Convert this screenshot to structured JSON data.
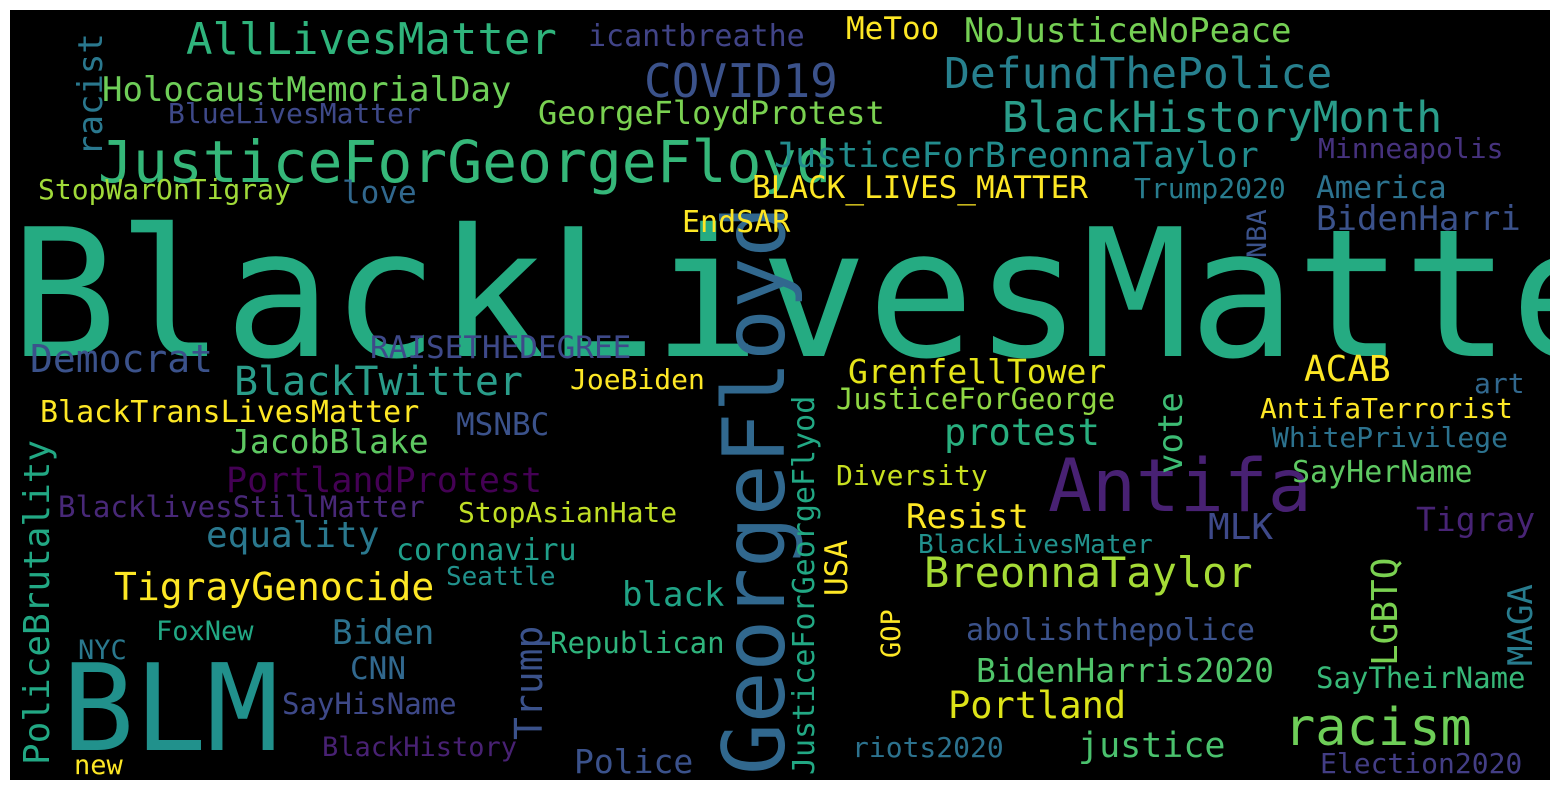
{
  "word_cloud": {
    "background": "#000000",
    "words": [
      {
        "text": "BlackLivesMatter",
        "color": "#25ab82",
        "orientation": "horizontal"
      },
      {
        "text": "BLM",
        "color": "#21918c",
        "orientation": "horizontal"
      },
      {
        "text": "GeorgeFloyd",
        "color": "#31688e",
        "orientation": "vertical"
      },
      {
        "text": "Antifa",
        "color": "#482173",
        "orientation": "horizontal"
      },
      {
        "text": "JusticeForGeorgeFloyd",
        "color": "#35b779",
        "orientation": "horizontal"
      },
      {
        "text": "AllLivesMatter",
        "color": "#2fb47c",
        "orientation": "horizontal"
      },
      {
        "text": "COVID19",
        "color": "#3b528b",
        "orientation": "horizontal"
      },
      {
        "text": "DefundThePolice",
        "color": "#27808e",
        "orientation": "horizontal"
      },
      {
        "text": "BlackHistoryMonth",
        "color": "#2a9d8a",
        "orientation": "horizontal"
      },
      {
        "text": "racism",
        "color": "#6ece58",
        "orientation": "horizontal"
      },
      {
        "text": "BreonnaTaylor",
        "color": "#a5db36",
        "orientation": "horizontal"
      },
      {
        "text": "TigrayGenocide",
        "color": "#fde725",
        "orientation": "horizontal"
      },
      {
        "text": "BlackTwitter",
        "color": "#2a9d8a",
        "orientation": "horizontal"
      },
      {
        "text": "Democrat",
        "color": "#3b528b",
        "orientation": "horizontal"
      },
      {
        "text": "PoliceBrutality",
        "color": "#22a884",
        "orientation": "vertical"
      },
      {
        "text": "NoJusticeNoPeace",
        "color": "#75d054",
        "orientation": "horizontal"
      },
      {
        "text": "icantbreathe",
        "color": "#414487",
        "orientation": "horizontal"
      },
      {
        "text": "MeToo",
        "color": "#fde725",
        "orientation": "horizontal"
      },
      {
        "text": "HolocaustMemorialDay",
        "color": "#6ece58",
        "orientation": "horizontal"
      },
      {
        "text": "BlueLivesMatter",
        "color": "#3e4989",
        "orientation": "horizontal"
      },
      {
        "text": "GeorgeFloydProtest",
        "color": "#7ad151",
        "orientation": "horizontal"
      },
      {
        "text": "JusticeForBreonnaTaylor",
        "color": "#228c8d",
        "orientation": "horizontal"
      },
      {
        "text": "BLACK_LIVES_MATTER",
        "color": "#fde725",
        "orientation": "horizontal"
      },
      {
        "text": "Trump2020",
        "color": "#287c8e",
        "orientation": "horizontal"
      },
      {
        "text": "America",
        "color": "#2c728e",
        "orientation": "horizontal"
      },
      {
        "text": "BidenHarri",
        "color": "#3b528b",
        "orientation": "horizontal"
      },
      {
        "text": "Minneapolis",
        "color": "#46327e",
        "orientation": "horizontal"
      },
      {
        "text": "StopWarOnTigray",
        "color": "#a0da39",
        "orientation": "horizontal"
      },
      {
        "text": "love",
        "color": "#31688e",
        "orientation": "horizontal"
      },
      {
        "text": "EndSAR",
        "color": "#fde725",
        "orientation": "horizontal"
      },
      {
        "text": "racist",
        "color": "#2a788e",
        "orientation": "vertical"
      },
      {
        "text": "NBA",
        "color": "#3b528b",
        "orientation": "vertical"
      },
      {
        "text": "RAISETHEDEGREE",
        "color": "#3e4989",
        "orientation": "horizontal"
      },
      {
        "text": "JoeBiden",
        "color": "#fde725",
        "orientation": "horizontal"
      },
      {
        "text": "GrenfellTower",
        "color": "#e5e419",
        "orientation": "horizontal"
      },
      {
        "text": "ACAB",
        "color": "#fde725",
        "orientation": "horizontal"
      },
      {
        "text": "art",
        "color": "#31688e",
        "orientation": "horizontal"
      },
      {
        "text": "BlackTransLivesMatter",
        "color": "#fde725",
        "orientation": "horizontal"
      },
      {
        "text": "MSNBC",
        "color": "#3b528b",
        "orientation": "horizontal"
      },
      {
        "text": "JusticeForGeorge",
        "color": "#8fd744",
        "orientation": "horizontal"
      },
      {
        "text": "AntifaTerrorist",
        "color": "#fde725",
        "orientation": "horizontal"
      },
      {
        "text": "JacobBlake",
        "color": "#5ec962",
        "orientation": "horizontal"
      },
      {
        "text": "protest",
        "color": "#29af7f",
        "orientation": "horizontal"
      },
      {
        "text": "vote",
        "color": "#3dbc74",
        "orientation": "vertical"
      },
      {
        "text": "WhitePrivilege",
        "color": "#2c728e",
        "orientation": "horizontal"
      },
      {
        "text": "PortlandProtest",
        "color": "#440154",
        "orientation": "horizontal"
      },
      {
        "text": "Diversity",
        "color": "#c8e020",
        "orientation": "horizontal"
      },
      {
        "text": "SayHerName",
        "color": "#5ec962",
        "orientation": "horizontal"
      },
      {
        "text": "BlacklivesStillMatter",
        "color": "#482878",
        "orientation": "horizontal"
      },
      {
        "text": "StopAsianHate",
        "color": "#c0df25",
        "orientation": "horizontal"
      },
      {
        "text": "Resist",
        "color": "#fde725",
        "orientation": "horizontal"
      },
      {
        "text": "MLK",
        "color": "#3e4989",
        "orientation": "horizontal"
      },
      {
        "text": "Tigray",
        "color": "#482475",
        "orientation": "horizontal"
      },
      {
        "text": "equality",
        "color": "#2a788e",
        "orientation": "horizontal"
      },
      {
        "text": "coronaviru",
        "color": "#1f9e89",
        "orientation": "horizontal"
      },
      {
        "text": "BlackLivesMater",
        "color": "#21918c",
        "orientation": "horizontal"
      },
      {
        "text": "Seattle",
        "color": "#21918c",
        "orientation": "horizontal"
      },
      {
        "text": "USA",
        "color": "#fde725",
        "orientation": "vertical"
      },
      {
        "text": "LGBTQ",
        "color": "#7ad151",
        "orientation": "vertical"
      },
      {
        "text": "MAGA",
        "color": "#287c8e",
        "orientation": "vertical"
      },
      {
        "text": "black",
        "color": "#20a386",
        "orientation": "horizontal"
      },
      {
        "text": "JusticeForGeorgeFlyod",
        "color": "#22a884",
        "orientation": "vertical"
      },
      {
        "text": "Trump",
        "color": "#3b528b",
        "orientation": "vertical"
      },
      {
        "text": "FoxNew",
        "color": "#22a884",
        "orientation": "horizontal"
      },
      {
        "text": "Biden",
        "color": "#2c728e",
        "orientation": "horizontal"
      },
      {
        "text": "Republican",
        "color": "#2fb47c",
        "orientation": "horizontal"
      },
      {
        "text": "GOP",
        "color": "#fde725",
        "orientation": "vertical"
      },
      {
        "text": "abolishthepolice",
        "color": "#3b528b",
        "orientation": "horizontal"
      },
      {
        "text": "NYC",
        "color": "#2a788e",
        "orientation": "horizontal"
      },
      {
        "text": "CNN",
        "color": "#31688e",
        "orientation": "horizontal"
      },
      {
        "text": "BidenHarris2020",
        "color": "#50c46a",
        "orientation": "horizontal"
      },
      {
        "text": "SayTheirName",
        "color": "#37b878",
        "orientation": "horizontal"
      },
      {
        "text": "SayHisName",
        "color": "#3e4989",
        "orientation": "horizontal"
      },
      {
        "text": "Portland",
        "color": "#dde318",
        "orientation": "horizontal"
      },
      {
        "text": "BlackHistory",
        "color": "#482173",
        "orientation": "horizontal"
      },
      {
        "text": "riots2020",
        "color": "#2c728e",
        "orientation": "horizontal"
      },
      {
        "text": "justice",
        "color": "#4ac16d",
        "orientation": "horizontal"
      },
      {
        "text": "new",
        "color": "#fde725",
        "orientation": "horizontal"
      },
      {
        "text": "Police",
        "color": "#3b528b",
        "orientation": "horizontal"
      },
      {
        "text": "Election2020",
        "color": "#433e85",
        "orientation": "horizontal"
      }
    ]
  }
}
